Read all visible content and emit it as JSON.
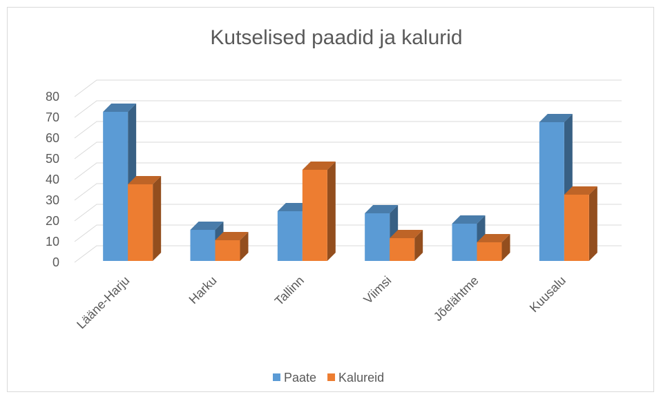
{
  "chart_data": {
    "type": "bar3d",
    "title": "Kutselised paadid ja kalurid",
    "categories": [
      "Lääne-Harju",
      "Harku",
      "Tallinn",
      "Viimsi",
      "Jõelähtme",
      "Kuusalu"
    ],
    "series": [
      {
        "name": "Paate",
        "color": "#5b9bd5",
        "values": [
          72,
          15,
          24,
          23,
          18,
          67
        ]
      },
      {
        "name": "Kalureid",
        "color": "#ed7d31",
        "values": [
          37,
          10,
          44,
          11,
          9,
          32
        ]
      }
    ],
    "ylim": [
      0,
      80
    ],
    "yticks": [
      0,
      10,
      20,
      30,
      40,
      50,
      60,
      70,
      80
    ],
    "grid": true,
    "legend": "bottom"
  }
}
